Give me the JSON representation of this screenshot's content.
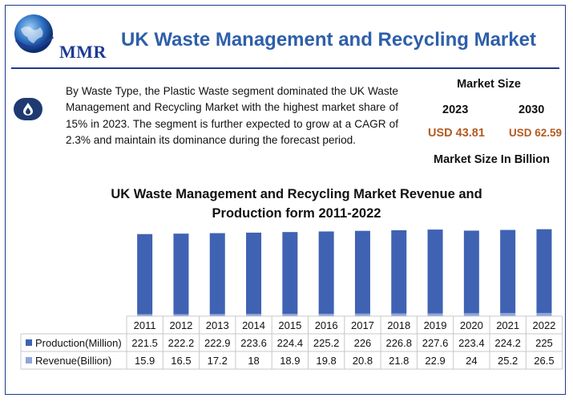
{
  "header": {
    "logo_text": "MMR",
    "title": "UK Waste Management and Recycling Market"
  },
  "summary": {
    "icon": "drop-icon",
    "text": "By Waste Type, the Plastic Waste segment dominated the UK Waste Management and Recycling Market with the highest market share of 15% in 2023. The segment is further expected to grow at a CAGR of 2.3% and maintain its dominance during the forecast period."
  },
  "market_size": {
    "header": "Market Size",
    "year_1": "2023",
    "year_2": "2030",
    "value_1": "USD 43.81",
    "value_2": "USD 62.59",
    "unit": "Market Size In Billion"
  },
  "colors": {
    "production": "#3f62b3",
    "revenue": "#8ea6da",
    "value_text": "#b35a1f",
    "title": "#2e5faa"
  },
  "chart_data": {
    "type": "bar",
    "title": "UK Waste Management and Recycling Market Revenue and Production form 2011-2022",
    "stacked": true,
    "categories": [
      "2011",
      "2012",
      "2013",
      "2014",
      "2015",
      "2016",
      "2017",
      "2018",
      "2019",
      "2020",
      "2021",
      "2022"
    ],
    "series": [
      {
        "name": "Production(Million)",
        "values": [
          221.5,
          222.2,
          222.9,
          223.6,
          224.4,
          225.2,
          226,
          226.8,
          227.6,
          223.4,
          224.2,
          225
        ]
      },
      {
        "name": "Revenue(Billion)",
        "values": [
          15.9,
          16.5,
          17.2,
          18,
          18.9,
          19.8,
          20.8,
          21.8,
          22.9,
          24,
          25.2,
          26.5
        ]
      }
    ],
    "data_table": true,
    "legend_placement": "data-table-left"
  }
}
